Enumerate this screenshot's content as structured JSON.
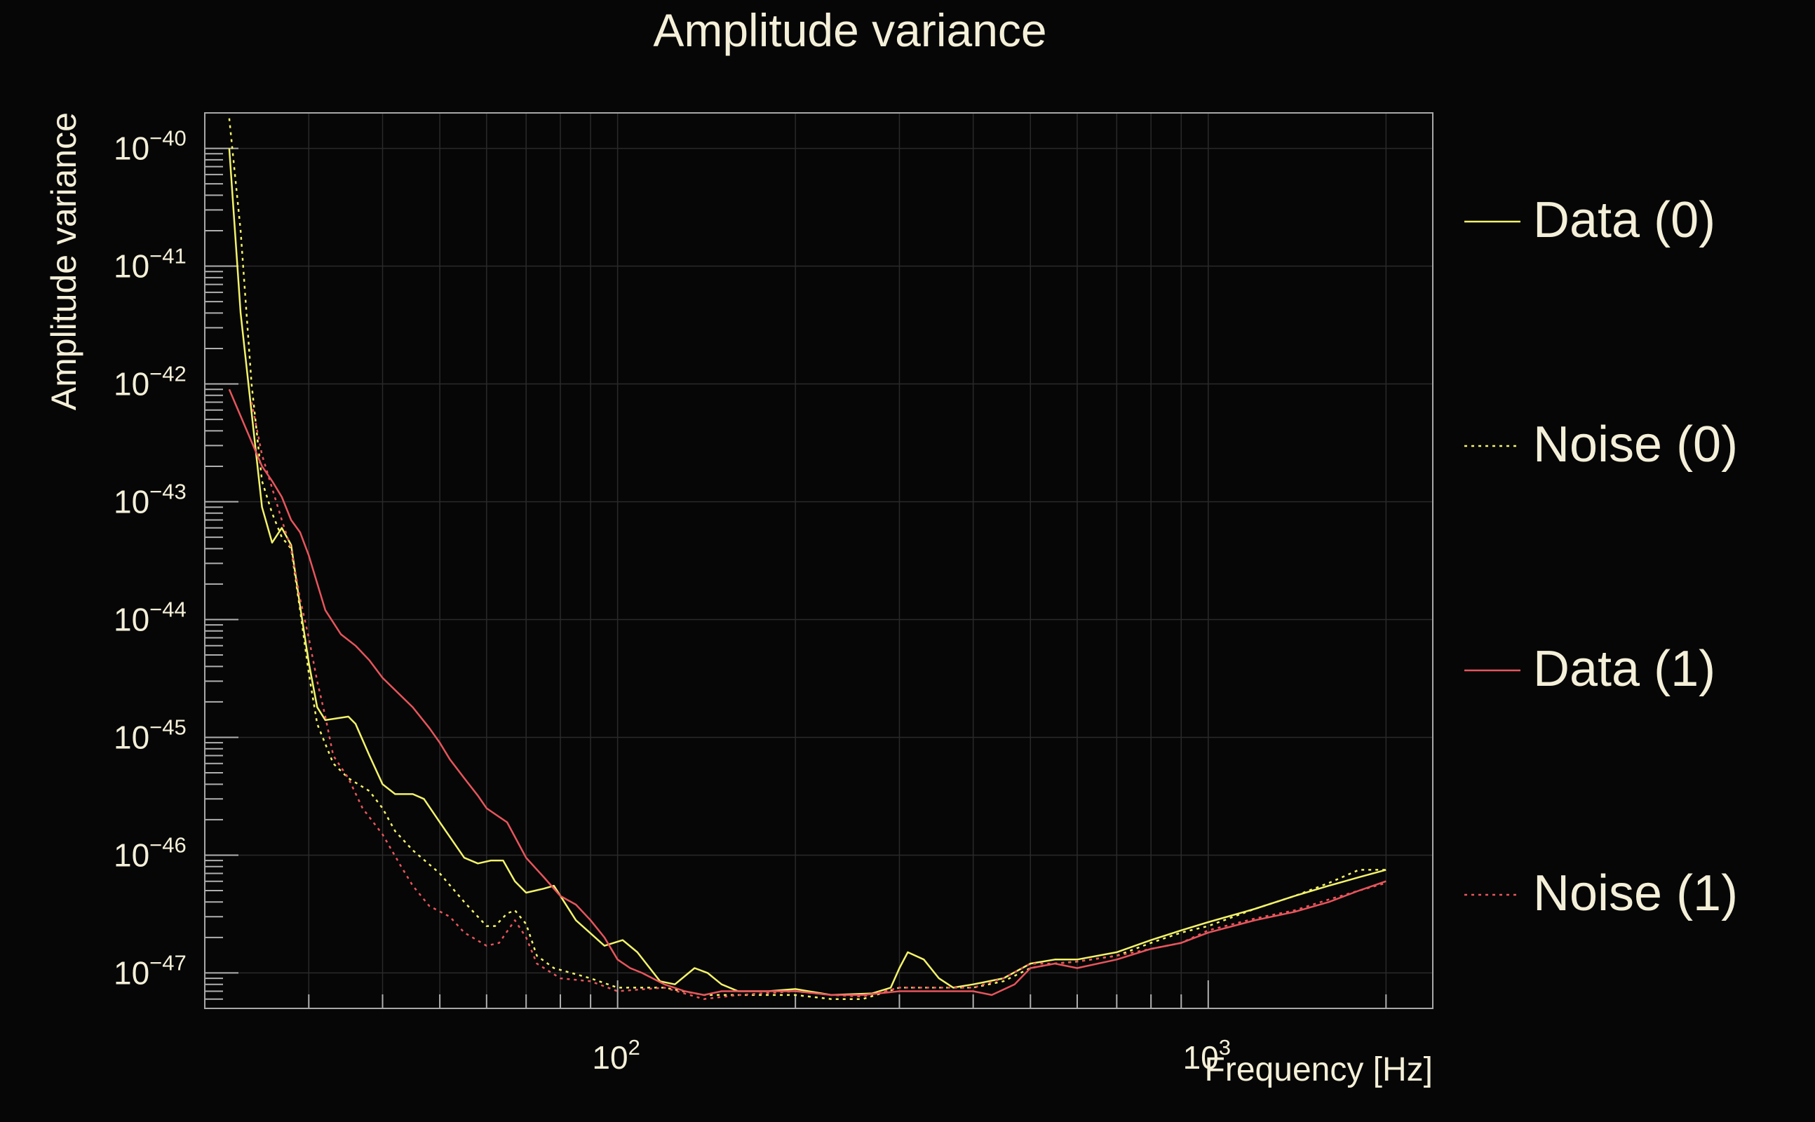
{
  "chart_data": {
    "type": "line",
    "title": "Amplitude variance",
    "xlabel": "Frequency [Hz]",
    "ylabel": "Amplitude variance",
    "xscale": "log",
    "yscale": "log",
    "xlim": [
      20,
      2400
    ],
    "ylim": [
      5e-48,
      2e-40
    ],
    "x_ticks": [
      {
        "value": 100,
        "base": "10",
        "exp": "2"
      },
      {
        "value": 1000,
        "base": "10",
        "exp": "3"
      }
    ],
    "y_ticks": [
      {
        "value": 1e-40,
        "base": "10",
        "exp": "−40"
      },
      {
        "value": 1e-41,
        "base": "10",
        "exp": "−41"
      },
      {
        "value": 1e-42,
        "base": "10",
        "exp": "−42"
      },
      {
        "value": 1e-43,
        "base": "10",
        "exp": "−43"
      },
      {
        "value": 1e-44,
        "base": "10",
        "exp": "−44"
      },
      {
        "value": 1e-45,
        "base": "10",
        "exp": "−45"
      },
      {
        "value": 1e-46,
        "base": "10",
        "exp": "−46"
      },
      {
        "value": 1e-47,
        "base": "10",
        "exp": "−47"
      }
    ],
    "grid": true,
    "legend_position": "right",
    "series": [
      {
        "name": "Data (0)",
        "color": "#f2f26a",
        "dash": "solid",
        "points": [
          [
            22,
            1e-40
          ],
          [
            23,
            4e-42
          ],
          [
            25,
            9e-44
          ],
          [
            26,
            4.5e-44
          ],
          [
            27,
            6e-44
          ],
          [
            28,
            4.3e-44
          ],
          [
            29,
            1.3e-44
          ],
          [
            30,
            4.3e-45
          ],
          [
            31,
            1.8e-45
          ],
          [
            32,
            1.4e-45
          ],
          [
            35,
            1.5e-45
          ],
          [
            36,
            1.3e-45
          ],
          [
            38,
            7e-46
          ],
          [
            40,
            4e-46
          ],
          [
            42,
            3.3e-46
          ],
          [
            45,
            3.3e-46
          ],
          [
            47,
            3e-46
          ],
          [
            50,
            1.9e-46
          ],
          [
            55,
            9.5e-47
          ],
          [
            58,
            8.5e-47
          ],
          [
            61,
            9e-47
          ],
          [
            64,
            9e-47
          ],
          [
            67,
            6e-47
          ],
          [
            70,
            4.8e-47
          ],
          [
            75,
            5.2e-47
          ],
          [
            78,
            5.5e-47
          ],
          [
            85,
            2.8e-47
          ],
          [
            95,
            1.7e-47
          ],
          [
            102,
            1.9e-47
          ],
          [
            108,
            1.5e-47
          ],
          [
            118,
            8.5e-48
          ],
          [
            125,
            8e-48
          ],
          [
            135,
            1.1e-47
          ],
          [
            142,
            1e-47
          ],
          [
            150,
            8e-48
          ],
          [
            160,
            7e-48
          ],
          [
            180,
            7e-48
          ],
          [
            200,
            7.3e-48
          ],
          [
            230,
            6.5e-48
          ],
          [
            270,
            6.7e-48
          ],
          [
            290,
            7.5e-48
          ],
          [
            300,
            1.1e-47
          ],
          [
            310,
            1.5e-47
          ],
          [
            330,
            1.3e-47
          ],
          [
            350,
            9e-48
          ],
          [
            370,
            7.5e-48
          ],
          [
            400,
            8e-48
          ],
          [
            450,
            9e-48
          ],
          [
            500,
            1.2e-47
          ],
          [
            550,
            1.3e-47
          ],
          [
            600,
            1.3e-47
          ],
          [
            700,
            1.5e-47
          ],
          [
            800,
            1.9e-47
          ],
          [
            900,
            2.3e-47
          ],
          [
            1000,
            2.7e-47
          ],
          [
            1200,
            3.5e-47
          ],
          [
            1400,
            4.5e-47
          ],
          [
            1600,
            5.5e-47
          ],
          [
            1800,
            6.5e-47
          ],
          [
            2000,
            7.5e-47
          ]
        ]
      },
      {
        "name": "Noise (0)",
        "color": "#f2f26a",
        "dash": "dotted",
        "points": [
          [
            22,
            1.8e-40
          ],
          [
            23,
            2e-41
          ],
          [
            24,
            1e-42
          ],
          [
            25,
            1.5e-43
          ],
          [
            26,
            8e-44
          ],
          [
            27,
            5e-44
          ],
          [
            28,
            4e-44
          ],
          [
            29,
            1.2e-44
          ],
          [
            30,
            3.5e-45
          ],
          [
            31,
            1.3e-45
          ],
          [
            33,
            6e-46
          ],
          [
            35,
            4.5e-46
          ],
          [
            38,
            3.5e-46
          ],
          [
            40,
            2.5e-46
          ],
          [
            42,
            1.6e-46
          ],
          [
            45,
            1.1e-46
          ],
          [
            50,
            7e-47
          ],
          [
            55,
            4e-47
          ],
          [
            60,
            2.5e-47
          ],
          [
            62,
            2.5e-47
          ],
          [
            65,
            3.2e-47
          ],
          [
            67,
            3.4e-47
          ],
          [
            70,
            2.6e-47
          ],
          [
            73,
            1.4e-47
          ],
          [
            78,
            1.1e-47
          ],
          [
            90,
            9e-48
          ],
          [
            100,
            7.5e-48
          ],
          [
            120,
            7.5e-48
          ],
          [
            140,
            6.5e-48
          ],
          [
            160,
            6.5e-48
          ],
          [
            200,
            6.5e-48
          ],
          [
            230,
            6e-48
          ],
          [
            260,
            6e-48
          ],
          [
            300,
            7.5e-48
          ],
          [
            350,
            7.5e-48
          ],
          [
            400,
            7.5e-48
          ],
          [
            450,
            8.5e-48
          ],
          [
            500,
            1.1e-47
          ],
          [
            550,
            1.2e-47
          ],
          [
            600,
            1.25e-47
          ],
          [
            700,
            1.4e-47
          ],
          [
            800,
            1.8e-47
          ],
          [
            900,
            2.2e-47
          ],
          [
            1000,
            2.5e-47
          ],
          [
            1200,
            3.5e-47
          ],
          [
            1400,
            4.5e-47
          ],
          [
            1600,
            5.8e-47
          ],
          [
            1800,
            7.5e-47
          ],
          [
            2000,
            7.5e-47
          ]
        ]
      },
      {
        "name": "Data (1)",
        "color": "#e8555c",
        "dash": "solid",
        "points": [
          [
            22,
            9e-43
          ],
          [
            25,
            2e-43
          ],
          [
            26,
            1.5e-43
          ],
          [
            27,
            1.1e-43
          ],
          [
            28,
            7e-44
          ],
          [
            29,
            5.5e-44
          ],
          [
            30,
            3.5e-44
          ],
          [
            32,
            1.2e-44
          ],
          [
            34,
            7.5e-45
          ],
          [
            36,
            6e-45
          ],
          [
            38,
            4.5e-45
          ],
          [
            40,
            3.2e-45
          ],
          [
            45,
            1.8e-45
          ],
          [
            48,
            1.2e-45
          ],
          [
            50,
            9e-46
          ],
          [
            52,
            6.5e-46
          ],
          [
            55,
            4.5e-46
          ],
          [
            58,
            3.2e-46
          ],
          [
            60,
            2.5e-46
          ],
          [
            65,
            1.9e-46
          ],
          [
            70,
            9.5e-47
          ],
          [
            75,
            6.5e-47
          ],
          [
            80,
            4.5e-47
          ],
          [
            85,
            3.8e-47
          ],
          [
            90,
            2.8e-47
          ],
          [
            95,
            2e-47
          ],
          [
            100,
            1.3e-47
          ],
          [
            105,
            1.1e-47
          ],
          [
            110,
            1e-47
          ],
          [
            120,
            8e-48
          ],
          [
            130,
            7e-48
          ],
          [
            140,
            6.5e-48
          ],
          [
            150,
            7e-48
          ],
          [
            170,
            7e-48
          ],
          [
            200,
            7e-48
          ],
          [
            230,
            6.5e-48
          ],
          [
            260,
            6.5e-48
          ],
          [
            300,
            7e-48
          ],
          [
            350,
            7e-48
          ],
          [
            400,
            7e-48
          ],
          [
            430,
            6.5e-48
          ],
          [
            470,
            8e-48
          ],
          [
            500,
            1.1e-47
          ],
          [
            550,
            1.2e-47
          ],
          [
            600,
            1.1e-47
          ],
          [
            700,
            1.3e-47
          ],
          [
            800,
            1.6e-47
          ],
          [
            900,
            1.8e-47
          ],
          [
            1000,
            2.2e-47
          ],
          [
            1200,
            2.8e-47
          ],
          [
            1400,
            3.3e-47
          ],
          [
            1600,
            4e-47
          ],
          [
            1800,
            5e-47
          ],
          [
            2000,
            6e-47
          ]
        ]
      },
      {
        "name": "Noise (1)",
        "color": "#e8555c",
        "dash": "dotted",
        "points": [
          [
            24,
            7e-43
          ],
          [
            25,
            2.5e-43
          ],
          [
            27,
            7e-44
          ],
          [
            28,
            4e-44
          ],
          [
            29,
            1.5e-44
          ],
          [
            30,
            7e-45
          ],
          [
            31,
            3e-45
          ],
          [
            32,
            1.5e-45
          ],
          [
            33,
            7e-46
          ],
          [
            35,
            4.5e-46
          ],
          [
            37,
            2.5e-46
          ],
          [
            40,
            1.5e-46
          ],
          [
            43,
            8e-47
          ],
          [
            45,
            5.5e-47
          ],
          [
            48,
            3.7e-47
          ],
          [
            52,
            3e-47
          ],
          [
            55,
            2.2e-47
          ],
          [
            60,
            1.7e-47
          ],
          [
            63,
            1.8e-47
          ],
          [
            67,
            2.8e-47
          ],
          [
            70,
            2e-47
          ],
          [
            73,
            1.2e-47
          ],
          [
            80,
            9e-48
          ],
          [
            90,
            8.5e-48
          ],
          [
            100,
            7e-48
          ],
          [
            120,
            7.5e-48
          ],
          [
            140,
            6e-48
          ],
          [
            160,
            6.5e-48
          ],
          [
            200,
            7e-48
          ],
          [
            230,
            6.5e-48
          ],
          [
            260,
            6.3e-48
          ],
          [
            300,
            7.5e-48
          ],
          [
            350,
            7.5e-48
          ],
          [
            400,
            7.5e-48
          ],
          [
            450,
            9e-48
          ],
          [
            500,
            1.2e-47
          ],
          [
            550,
            1.2e-47
          ],
          [
            600,
            1.25e-47
          ],
          [
            700,
            1.4e-47
          ],
          [
            800,
            1.6e-47
          ],
          [
            900,
            1.8e-47
          ],
          [
            1000,
            2.3e-47
          ],
          [
            1200,
            2.9e-47
          ],
          [
            1400,
            3.4e-47
          ],
          [
            1600,
            4.2e-47
          ],
          [
            1800,
            5e-47
          ],
          [
            2000,
            5.8e-47
          ]
        ]
      }
    ]
  }
}
